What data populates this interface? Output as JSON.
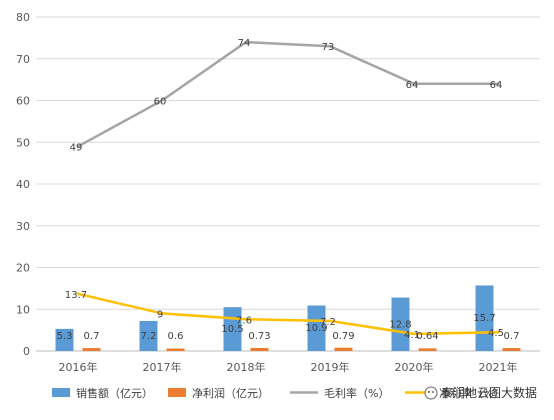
{
  "chart_data": {
    "type": "bar",
    "categories": [
      "2016年",
      "2017年",
      "2018年",
      "2019年",
      "2020年",
      "2021年"
    ],
    "ylim": [
      0,
      80
    ],
    "yticks": [
      0,
      10,
      20,
      30,
      40,
      50,
      60,
      70,
      80
    ],
    "grid": true,
    "legend_position": "bottom",
    "series": [
      {
        "name": "销售额（亿元）",
        "kind": "bar",
        "color": "#5b9bd5",
        "values": [
          5.3,
          7.2,
          10.5,
          10.9,
          12.8,
          15.7
        ],
        "labels": [
          "5.3",
          "7.2",
          "10.5",
          "10.9",
          "12.8",
          "15.7"
        ]
      },
      {
        "name": "净利润（亿元）",
        "kind": "bar",
        "color": "#ed7d31",
        "values": [
          0.7,
          0.6,
          0.73,
          0.79,
          0.64,
          0.7
        ],
        "labels": [
          "0.7",
          "0.6",
          "0.73",
          "0.79",
          "0.64",
          "0.7"
        ]
      },
      {
        "name": "毛利率（%）",
        "kind": "line",
        "color": "#a5a5a5",
        "values": [
          49,
          60,
          74,
          73,
          64,
          64
        ],
        "labels": [
          "49",
          "60",
          "74",
          "73",
          "64",
          "64"
        ]
      },
      {
        "name": "净利率（%）",
        "kind": "line",
        "color": "#ffc000",
        "values": [
          13.7,
          9,
          7.6,
          7.2,
          4.1,
          4.5
        ],
        "labels": [
          "13.7",
          "9",
          "7.6",
          "7.2",
          "4.1",
          "4.5"
        ]
      }
    ]
  },
  "watermark": {
    "text": "泰润地云图大数据",
    "icon": "wechat-icon"
  }
}
